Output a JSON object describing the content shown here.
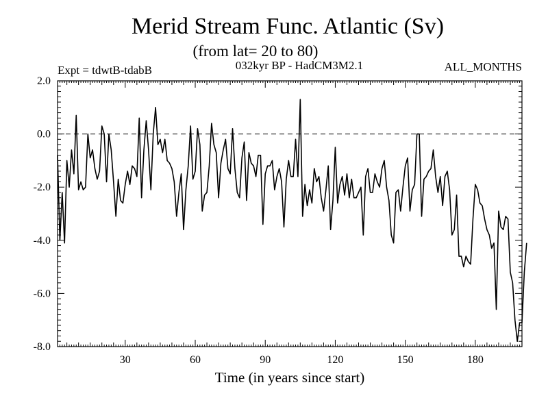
{
  "chart_data": {
    "type": "line",
    "title": "Merid Stream Func. Atlantic (Sv)",
    "subtitle": "(from lat= 20 to 80)",
    "annotations": {
      "left": "Expt = tdwtB-tdabB",
      "center": "032kyr BP - HadCM3M2.1",
      "right": "ALL_MONTHS"
    },
    "xlabel": "Time (in years since start)",
    "ylabel": "",
    "xlim": [
      1,
      200
    ],
    "ylim": [
      -8.0,
      2.0
    ],
    "x_ticks": [
      30,
      60,
      90,
      120,
      150,
      180
    ],
    "x_tick_labels": [
      "30",
      "60",
      "90",
      "120",
      "150",
      "180"
    ],
    "y_ticks": [
      2.0,
      0.0,
      -2.0,
      -4.0,
      -6.0,
      -8.0
    ],
    "y_tick_labels": [
      "2.0",
      "0.0",
      "-2.0",
      "-4.0",
      "-6.0",
      "-8.0"
    ],
    "reference_line": 0.0,
    "series": [
      {
        "name": "Merid Stream Func.",
        "x_start": 1,
        "x_step": 1,
        "values": [
          -0.8,
          -4.0,
          -2.2,
          -4.1,
          -1.0,
          -2.0,
          -0.6,
          -1.5,
          0.7,
          -2.1,
          -1.8,
          -2.1,
          -2.0,
          0.0,
          -0.9,
          -0.6,
          -1.3,
          -1.7,
          -1.4,
          0.3,
          0.0,
          -1.8,
          0.0,
          -0.6,
          -1.8,
          -3.1,
          -1.7,
          -2.5,
          -2.6,
          -1.9,
          -1.4,
          -1.9,
          -1.2,
          -1.3,
          -1.6,
          0.6,
          -2.4,
          -0.6,
          0.5,
          -0.6,
          -2.1,
          0.0,
          1.0,
          -0.4,
          -0.2,
          -0.7,
          -0.2,
          -1.0,
          -1.1,
          -1.3,
          -1.8,
          -3.1,
          -2.2,
          -1.5,
          -3.6,
          -2.1,
          -1.2,
          0.3,
          -1.7,
          -1.4,
          0.2,
          -0.4,
          -2.9,
          -2.3,
          -2.2,
          -1.2,
          0.4,
          -0.4,
          -0.7,
          -2.4,
          -1.1,
          -0.6,
          -0.2,
          -1.3,
          -1.5,
          0.2,
          -1.3,
          -2.2,
          -2.4,
          -0.9,
          -0.3,
          -2.5,
          -0.7,
          -1.1,
          -1.2,
          -1.6,
          -0.8,
          -0.8,
          -3.4,
          -1.5,
          -1.2,
          -1.2,
          -1.0,
          -2.1,
          -1.6,
          -1.3,
          -1.8,
          -3.5,
          -1.7,
          -1.0,
          -1.6,
          -1.6,
          -0.2,
          -1.6,
          1.3,
          -3.1,
          -1.9,
          -2.7,
          -2.1,
          -2.6,
          -1.3,
          -1.8,
          -1.6,
          -2.4,
          -2.9,
          -2.1,
          -1.2,
          -3.6,
          -2.5,
          -0.5,
          -2.6,
          -1.9,
          -1.6,
          -2.3,
          -1.5,
          -2.4,
          -1.7,
          -2.4,
          -2.4,
          -2.2,
          -2.0,
          -3.8,
          -1.6,
          -1.3,
          -2.2,
          -2.2,
          -1.5,
          -1.8,
          -2.0,
          -1.3,
          -1.0,
          -2.0,
          -2.5,
          -3.8,
          -4.1,
          -2.2,
          -2.1,
          -2.9,
          -2.0,
          -1.2,
          -0.9,
          -2.9,
          -2.1,
          -1.9,
          0.0,
          0.0,
          -3.1,
          -1.7,
          -1.6,
          -1.4,
          -1.3,
          -0.6,
          -1.6,
          -2.2,
          -1.6,
          -2.7,
          -1.6,
          -1.4,
          -2.1,
          -3.8,
          -3.6,
          -2.3,
          -4.6,
          -4.6,
          -5.0,
          -4.6,
          -4.8,
          -4.9,
          -3.2,
          -1.9,
          -2.1,
          -2.6,
          -2.7,
          -3.2,
          -3.6,
          -3.8,
          -4.3,
          -4.1,
          -6.6,
          -2.9,
          -3.5,
          -3.6,
          -3.1,
          -3.2,
          -5.2,
          -5.6,
          -7.0,
          -7.8,
          -7.1,
          -7.1,
          -5.2,
          -4.1
        ]
      }
    ]
  }
}
